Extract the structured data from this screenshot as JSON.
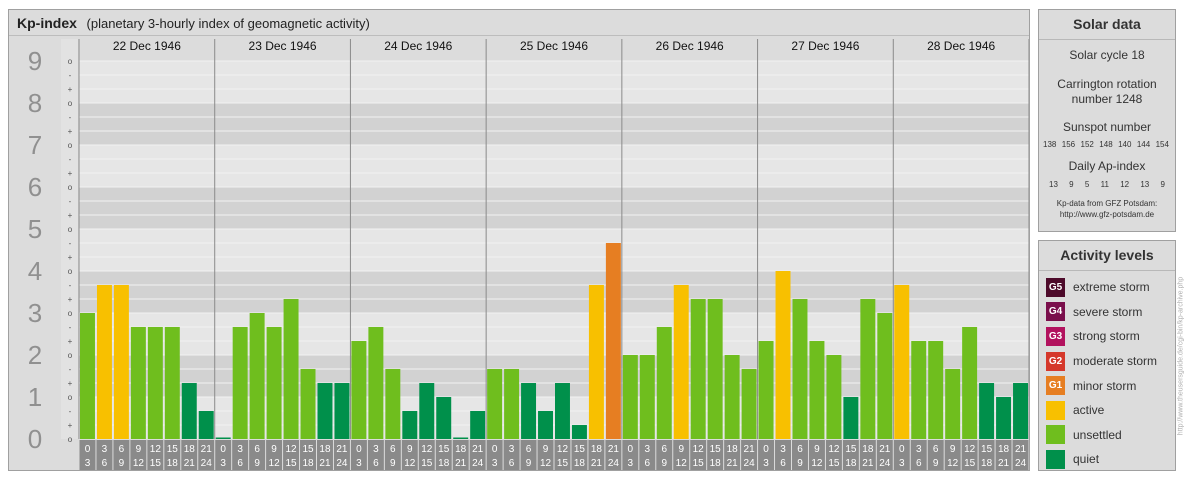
{
  "header": {
    "title": "Kp-index",
    "subtitle": "(planetary 3-hourly index of geomagnetic activity)"
  },
  "chart_data": {
    "type": "bar",
    "y_axis": {
      "labels": [
        "0",
        "1",
        "2",
        "3",
        "4",
        "5",
        "6",
        "7",
        "8",
        "9"
      ],
      "min": 0,
      "max": 9,
      "subticks": [
        "-",
        "o",
        "+"
      ]
    },
    "days": [
      "22 Dec 1946",
      "23 Dec 1946",
      "24 Dec 1946",
      "25 Dec 1946",
      "26 Dec 1946",
      "27 Dec 1946",
      "28 Dec 1946"
    ],
    "interval_starts": [
      "0",
      "3",
      "6",
      "9",
      "12",
      "15",
      "18",
      "21"
    ],
    "interval_ends": [
      "3",
      "6",
      "9",
      "12",
      "15",
      "18",
      "21",
      "24"
    ],
    "values": [
      [
        3.0,
        3.667,
        3.667,
        2.667,
        2.667,
        2.667,
        1.333,
        0.667
      ],
      [
        0.0,
        2.667,
        3.0,
        2.667,
        3.333,
        1.667,
        1.333,
        1.333
      ],
      [
        2.333,
        2.667,
        1.667,
        0.667,
        1.333,
        1.0,
        0.0,
        0.667
      ],
      [
        1.667,
        1.667,
        1.333,
        0.667,
        1.333,
        0.333,
        3.667,
        4.667
      ],
      [
        2.0,
        2.0,
        2.667,
        3.667,
        3.333,
        3.333,
        2.0,
        1.667
      ],
      [
        2.333,
        4.0,
        3.333,
        2.333,
        2.0,
        1.0,
        3.333,
        3.0
      ],
      [
        3.667,
        2.333,
        2.333,
        1.667,
        2.667,
        1.333,
        1.0,
        1.333
      ]
    ],
    "colors": {
      "quiet": "#00904b",
      "unsettled": "#6fbe1e",
      "active": "#f8c000",
      "minor": "#e67e22"
    }
  },
  "solar": {
    "title": "Solar data",
    "cycle": "Solar cycle 18",
    "carrington_line1": "Carrington rotation",
    "carrington_line2": "number 1248",
    "sunspot_label": "Sunspot number",
    "sunspots": [
      "138",
      "156",
      "152",
      "148",
      "140",
      "144",
      "154"
    ],
    "ap_label": "Daily Ap-index",
    "ap": [
      "13",
      "9",
      "5",
      "11",
      "12",
      "13",
      "9"
    ],
    "source_line1": "Kp-data from GFZ Potsdam:",
    "source_line2": "http://www.gfz-potsdam.de"
  },
  "activity": {
    "title": "Activity levels",
    "levels": [
      {
        "code": "G5",
        "label": "extreme storm",
        "color": "#4d0a2a"
      },
      {
        "code": "G4",
        "label": "severe storm",
        "color": "#7a0f4c"
      },
      {
        "code": "G3",
        "label": "strong storm",
        "color": "#b2125e"
      },
      {
        "code": "G2",
        "label": "moderate storm",
        "color": "#d5382b"
      },
      {
        "code": "G1",
        "label": "minor storm",
        "color": "#e67e22"
      },
      {
        "code": "",
        "label": "active",
        "color": "#f8c000"
      },
      {
        "code": "",
        "label": "unsettled",
        "color": "#6fbe1e"
      },
      {
        "code": "",
        "label": "quiet",
        "color": "#00904b"
      }
    ]
  },
  "watermark": "http://www.theusersguide.de/cgi-bin/kp-archive.php"
}
